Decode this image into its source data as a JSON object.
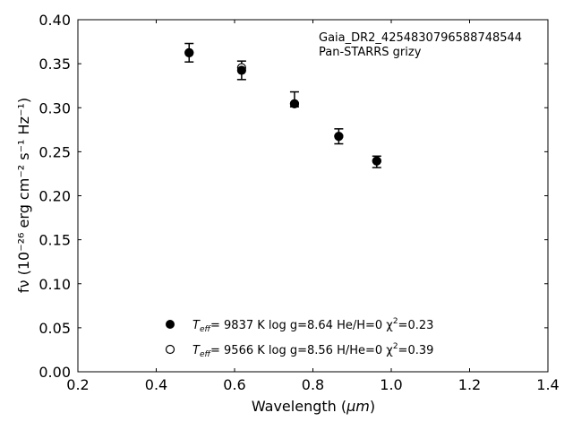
{
  "chart_data": {
    "type": "scatter",
    "xlabel_prefix": "Wavelength (",
    "xlabel_unit": "μm",
    "xlabel_suffix": ")",
    "ylabel": "fν (10⁻²⁶ erg cm⁻² s⁻¹ Hz⁻¹)",
    "xlim": [
      0.2,
      1.4
    ],
    "ylim": [
      0.0,
      0.4
    ],
    "xticks": [
      "0.2",
      "0.4",
      "0.6",
      "0.8",
      "1.0",
      "1.2",
      "1.4"
    ],
    "yticks": [
      "0.00",
      "0.05",
      "0.10",
      "0.15",
      "0.20",
      "0.25",
      "0.30",
      "0.35",
      "0.40"
    ],
    "annotations": [
      "Gaia_DR2_4254830796588748544",
      "Pan-STARRS grizy"
    ],
    "observed": {
      "x": [
        0.484,
        0.618,
        0.753,
        0.866,
        0.963
      ],
      "y": [
        0.3625,
        0.3425,
        0.3095,
        0.2675,
        0.2385
      ],
      "err": [
        0.0105,
        0.0105,
        0.0085,
        0.0085,
        0.0065
      ]
    },
    "series": [
      {
        "name": "Teff=  9837 K  log g=8.64  He/H=0  χ2=0.23",
        "label_parts": [
          "T",
          "eff",
          "=  9837 K  log g=8.64  He/H=0  χ",
          "2",
          "=0.23"
        ],
        "marker": "filled",
        "x": [
          0.484,
          0.618,
          0.753,
          0.866,
          0.963
        ],
        "y": [
          0.3625,
          0.3425,
          0.3045,
          0.2675,
          0.2395
        ]
      },
      {
        "name": "Teff=  9566 K  log g=8.56  H/He=0  χ2=0.39",
        "label_parts": [
          "T",
          "eff",
          "=  9566 K  log g=8.56  H/He=0  χ",
          "2",
          "=0.39"
        ],
        "marker": "open",
        "x": [
          0.484,
          0.618,
          0.753,
          0.866,
          0.963
        ],
        "y": [
          0.3625,
          0.3455,
          0.3045,
          0.2675,
          0.2395
        ]
      }
    ],
    "legend": "lower-center",
    "grid": false
  }
}
